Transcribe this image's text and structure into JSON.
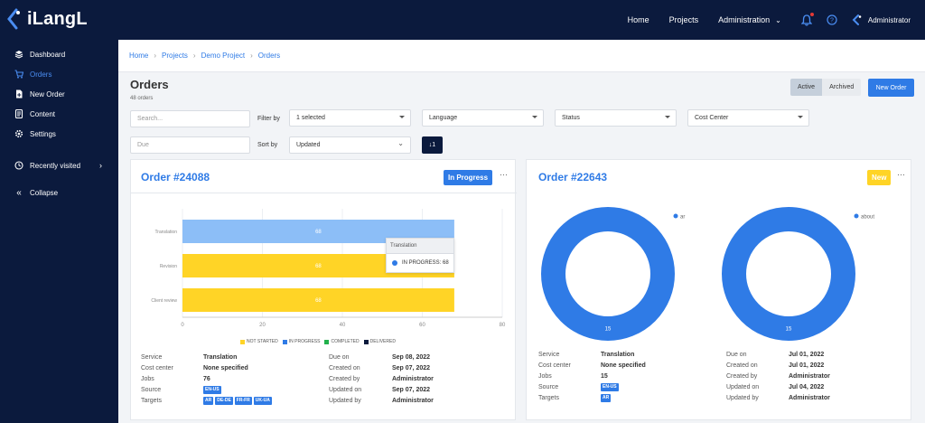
{
  "app": {
    "logo_text": "iLangL"
  },
  "topnav": {
    "home": "Home",
    "projects": "Projects",
    "administration": "Administration",
    "user": "Administrator"
  },
  "sidebar": {
    "items": [
      {
        "label": "Dashboard",
        "icon": "layers-icon"
      },
      {
        "label": "Orders",
        "icon": "cart-icon"
      },
      {
        "label": "New Order",
        "icon": "document-plus-icon"
      },
      {
        "label": "Content",
        "icon": "content-icon"
      },
      {
        "label": "Settings",
        "icon": "gear-icon"
      },
      {
        "label": "Recently visited",
        "icon": "clock-icon"
      },
      {
        "label": "Collapse",
        "icon": "double-chevron-left-icon"
      }
    ]
  },
  "breadcrumb": [
    "Home",
    "Projects",
    "Demo Project",
    "Orders"
  ],
  "page": {
    "title": "Orders",
    "count": "48 orders",
    "toggle_active": "Active",
    "toggle_archived": "Archived",
    "new_order": "New Order"
  },
  "filters": {
    "search_placeholder": "Search...",
    "filter_by": "Filter by",
    "selected": "1 selected",
    "language": "Language",
    "status": "Status",
    "cost_center": "Cost Center",
    "due_placeholder": "Due",
    "sort_by": "Sort by",
    "sort_value": "Updated",
    "sort_dir_icon": "↓1"
  },
  "colors": {
    "brand_dark": "#0b1a3d",
    "accent": "#2f7be6",
    "in_progress": "#2f7be6",
    "not_started": "#ffd426",
    "completed": "#22b14c",
    "delivered": "#0b1a3d",
    "bar_light": "#8cbef7",
    "new_badge": "#ffd426"
  },
  "cards": [
    {
      "title": "Order #24088",
      "status": "In Progress",
      "chart_data": {
        "type": "bar",
        "orientation": "horizontal",
        "categories": [
          "Translation",
          "Revision",
          "Client review"
        ],
        "series": [
          {
            "name": "NOT STARTED",
            "values": [
              0,
              68,
              68
            ]
          },
          {
            "name": "IN PROGRESS",
            "values": [
              68,
              0,
              0
            ]
          },
          {
            "name": "COMPLETED",
            "values": [
              0,
              0,
              0
            ]
          },
          {
            "name": "DELIVERED",
            "values": [
              0,
              0,
              0
            ]
          }
        ],
        "data_labels": [
          "68",
          "68",
          "68"
        ],
        "xlim": [
          0,
          80
        ],
        "xticks": [
          "0",
          "20",
          "40",
          "60",
          "80"
        ],
        "legend": [
          "NOT STARTED",
          "IN PROGRESS",
          "COMPLETED",
          "DELIVERED"
        ],
        "legend_position": "bottom"
      },
      "tooltip": {
        "title": "Translation",
        "label": "IN PROGRESS:",
        "value": "68"
      },
      "details": {
        "service_k": "Service",
        "service_v": "Translation",
        "cost_k": "Cost center",
        "cost_v": "None specified",
        "jobs_k": "Jobs",
        "jobs_v": "76",
        "source_k": "Source",
        "source_tags": [
          "EN-US"
        ],
        "targets_k": "Targets",
        "target_tags": [
          "AR",
          "DE-DE",
          "FR-FR",
          "UK-UA"
        ],
        "due_k": "Due on",
        "due_v": "Sep 08, 2022",
        "created_k": "Created on",
        "created_v": "Sep 07, 2022",
        "createdby_k": "Created by",
        "createdby_v": "Administrator",
        "updated_k": "Updated on",
        "updated_v": "Sep 07, 2022",
        "updatedby_k": "Updated by",
        "updatedby_v": "Administrator"
      }
    },
    {
      "title": "Order #22643",
      "status": "New",
      "chart_data": [
        {
          "type": "pie",
          "categories": [
            "ar"
          ],
          "values": [
            15
          ],
          "donut": true,
          "legend_position": "top-right"
        },
        {
          "type": "pie",
          "categories": [
            "about"
          ],
          "values": [
            15
          ],
          "donut": true,
          "legend_position": "top-right"
        }
      ],
      "details": {
        "service_k": "Service",
        "service_v": "Translation",
        "cost_k": "Cost center",
        "cost_v": "None specified",
        "jobs_k": "Jobs",
        "jobs_v": "15",
        "source_k": "Source",
        "source_tags": [
          "EN-US"
        ],
        "targets_k": "Targets",
        "target_tags": [
          "AR"
        ],
        "due_k": "Due on",
        "due_v": "Jul 01, 2022",
        "created_k": "Created on",
        "created_v": "Jul 01, 2022",
        "createdby_k": "Created by",
        "createdby_v": "Administrator",
        "updated_k": "Updated on",
        "updated_v": "Jul 04, 2022",
        "updatedby_k": "Updated by",
        "updatedby_v": "Administrator"
      }
    }
  ]
}
